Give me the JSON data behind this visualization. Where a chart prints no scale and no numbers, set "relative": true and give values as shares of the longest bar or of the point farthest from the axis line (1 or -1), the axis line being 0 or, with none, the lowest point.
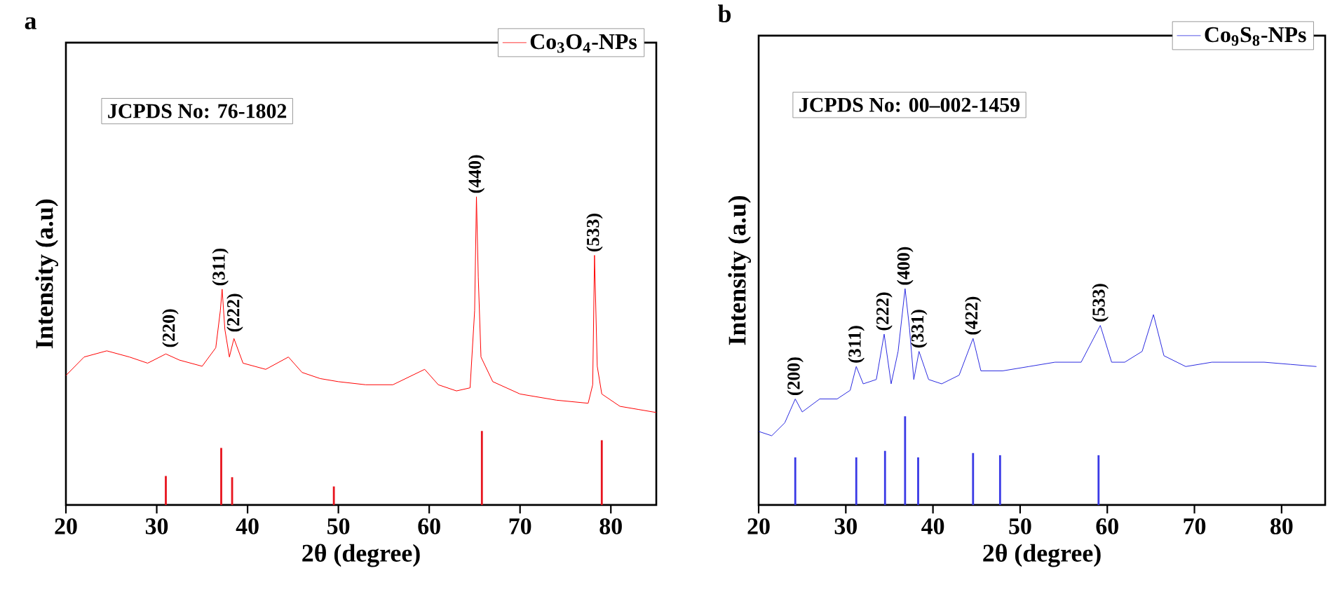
{
  "chart_data": [
    {
      "type": "line",
      "title": "a",
      "xlabel": "2θ (degree)",
      "ylabel": "Intensity (a.u)",
      "relative": true,
      "legend": "top right",
      "xlim": [
        20,
        85
      ],
      "xticks": [
        20,
        30,
        40,
        50,
        60,
        70,
        80
      ],
      "annotations": [
        "JCPDS No: 76-1802",
        {
          "text": "(220)",
          "x": 31.5,
          "y": 0.5
        },
        {
          "text": "(311)",
          "x": 37.0,
          "y": 0.7
        },
        {
          "text": "(222)",
          "x": 38.6,
          "y": 0.55
        },
        {
          "text": "(440)",
          "x": 65.2,
          "y": 1.0
        },
        {
          "text": "(533)",
          "x": 78.2,
          "y": 0.81
        }
      ],
      "series": [
        {
          "name": "Co$_{3}$O$_{4}$-NPs",
          "color": "#ff0000",
          "x": [
            20,
            22,
            24.5,
            27,
            29,
            31,
            32.5,
            35,
            36.5,
            37.0,
            37.2,
            37.5,
            38,
            38.5,
            39.5,
            42,
            44.5,
            46,
            48,
            50,
            53,
            56,
            59.5,
            61,
            63,
            64.5,
            65.0,
            65.2,
            65.4,
            65.7,
            67,
            70,
            74,
            77.5,
            78.0,
            78.2,
            78.5,
            79,
            81,
            83,
            85
          ],
          "values": [
            0.42,
            0.48,
            0.5,
            0.48,
            0.46,
            0.49,
            0.47,
            0.45,
            0.51,
            0.63,
            0.7,
            0.57,
            0.48,
            0.54,
            0.46,
            0.44,
            0.48,
            0.43,
            0.41,
            0.4,
            0.39,
            0.39,
            0.44,
            0.39,
            0.37,
            0.38,
            0.63,
            1.0,
            0.74,
            0.48,
            0.4,
            0.36,
            0.34,
            0.33,
            0.39,
            0.81,
            0.45,
            0.36,
            0.32,
            0.31,
            0.3
          ]
        },
        {
          "type": "bar",
          "color": "#e8141e",
          "x": [
            31.0,
            37.1,
            38.3,
            49.5,
            65.8,
            79.0
          ],
          "values": [
            0.094,
            0.185,
            0.09,
            0.06,
            0.24,
            0.21
          ]
        }
      ]
    },
    {
      "type": "line",
      "title": "b",
      "xlabel": "2θ (degree)",
      "ylabel": "Intensity (a.u)",
      "relative": true,
      "legend": "top right",
      "xlim": [
        20,
        85
      ],
      "xticks": [
        20,
        30,
        40,
        50,
        60,
        70,
        80
      ],
      "annotations": [
        "JCPDS No: 00–002-1459",
        {
          "text": "(200)",
          "x": 24.2,
          "y": 0.49
        },
        {
          "text": "(311)",
          "x": 31.2,
          "y": 0.64
        },
        {
          "text": "(222)",
          "x": 34.4,
          "y": 0.79
        },
        {
          "text": "(400)",
          "x": 36.8,
          "y": 1.0
        },
        {
          "text": "(331)",
          "x": 38.4,
          "y": 0.71
        },
        {
          "text": "(422)",
          "x": 44.6,
          "y": 0.77
        },
        {
          "text": "(533)",
          "x": 59.2,
          "y": 0.83
        }
      ],
      "series": [
        {
          "name": "Co$_{9}$S$_{8}$-NPs",
          "color": "#2a2ae0",
          "x": [
            20,
            21.5,
            23,
            24.2,
            25,
            27,
            29,
            30.5,
            31.2,
            32,
            33.5,
            34.4,
            35.2,
            36.0,
            36.8,
            37.3,
            37.8,
            38.4,
            39.5,
            41,
            43,
            44.6,
            45.5,
            48,
            51,
            54,
            57,
            59.2,
            60.5,
            62,
            64,
            65.3,
            66.5,
            69,
            72,
            75,
            78,
            81,
            84
          ],
          "values": [
            0.34,
            0.32,
            0.38,
            0.49,
            0.43,
            0.49,
            0.49,
            0.53,
            0.64,
            0.56,
            0.58,
            0.79,
            0.56,
            0.71,
            1.0,
            0.82,
            0.58,
            0.71,
            0.58,
            0.56,
            0.6,
            0.77,
            0.62,
            0.62,
            0.64,
            0.66,
            0.66,
            0.83,
            0.66,
            0.66,
            0.71,
            0.88,
            0.69,
            0.64,
            0.66,
            0.66,
            0.66,
            0.65,
            0.64
          ]
        },
        {
          "type": "bar",
          "color": "#3a3ae6",
          "x": [
            24.2,
            31.2,
            34.5,
            36.8,
            38.3,
            44.6,
            47.7,
            59.0
          ],
          "values": [
            0.22,
            0.22,
            0.25,
            0.41,
            0.22,
            0.24,
            0.23,
            0.23
          ]
        }
      ]
    }
  ]
}
